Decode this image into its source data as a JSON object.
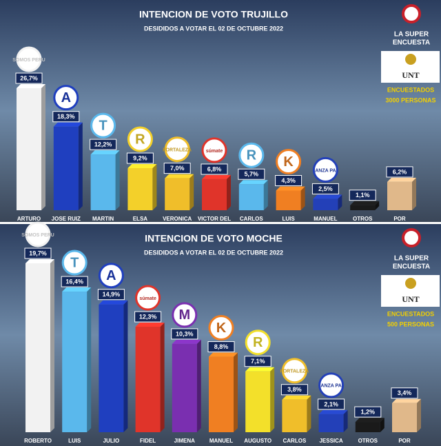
{
  "chart_data": [
    {
      "type": "bar",
      "title": "INTENCION DE VOTO TRUJILLO",
      "subtitle": "DESIDIDOS A VOTAR EL 02 DE OCTUBRE 2022",
      "brand": [
        "LA SUPER",
        "ENCUESTA"
      ],
      "university": "UNT",
      "note": [
        "ENCUESTADOS",
        "3000 PERSONAS"
      ],
      "categories": [
        "ARTURO",
        "JOSE RUIZ",
        "MARTIN",
        "ELSA",
        "VERONICA",
        "VICTOR DEL",
        "CARLOS",
        "LUIS",
        "MANUEL",
        "OTROS",
        "POR"
      ],
      "logos": [
        "SOMOS PERU",
        "A",
        "T",
        "R",
        "FORTALEZA",
        "súmate",
        "R",
        "K",
        "ANZA PA",
        null,
        null
      ],
      "values": [
        26.7,
        18.3,
        12.2,
        9.2,
        7.0,
        6.8,
        5.7,
        4.3,
        2.5,
        1.1,
        6.2
      ],
      "value_labels": [
        "26,7%",
        "18,3%",
        "12,2%",
        "9,2%",
        "7,0%",
        "6,8%",
        "5,7%",
        "4,3%",
        "2,5%",
        "1,1%",
        "6,2%"
      ],
      "colors": [
        "#f2f2f2",
        "#1f3fbf",
        "#5ab8ec",
        "#f3d02a",
        "#f0be2a",
        "#e0342a",
        "#5ab8ec",
        "#f07f22",
        "#2340b8",
        "#1a1a1a",
        "#e0b88a"
      ]
    },
    {
      "type": "bar",
      "title": "INTENCION DE VOTO MOCHE",
      "subtitle": "DESIDIDOS A VOTAR EL 02 DE OCTUBRE 2022",
      "brand": [
        "LA SUPER",
        "ENCUESTA"
      ],
      "university": "UNT",
      "note": [
        "ENCUESTADOS",
        "500 PERSONAS"
      ],
      "categories": [
        "ROBERTO",
        "LUIS",
        "JULIO",
        "FIDEL",
        "JIMENA",
        "MANUEL",
        "AUGUSTO",
        "CARLOS",
        "JESSICA",
        "OTROS",
        "POR"
      ],
      "logos": [
        "SOMOS PERU",
        "T",
        "A",
        "súmate",
        "M",
        "K",
        "R",
        "FORTALEZA",
        "ANZA PA",
        null,
        null
      ],
      "values": [
        19.7,
        16.4,
        14.9,
        12.3,
        10.3,
        8.8,
        7.1,
        3.8,
        2.1,
        1.2,
        3.4
      ],
      "value_labels": [
        "19,7%",
        "16,4%",
        "14,9%",
        "12,3%",
        "10,3%",
        "8,8%",
        "7,1%",
        "3,8%",
        "2,1%",
        "1,2%",
        "3,4%"
      ],
      "colors": [
        "#f2f2f2",
        "#5ab8ec",
        "#1f3fbf",
        "#e0342a",
        "#7a2fb0",
        "#f07f22",
        "#f3e02a",
        "#f0be2a",
        "#2340b8",
        "#1a1a1a",
        "#e0b88a"
      ]
    }
  ]
}
